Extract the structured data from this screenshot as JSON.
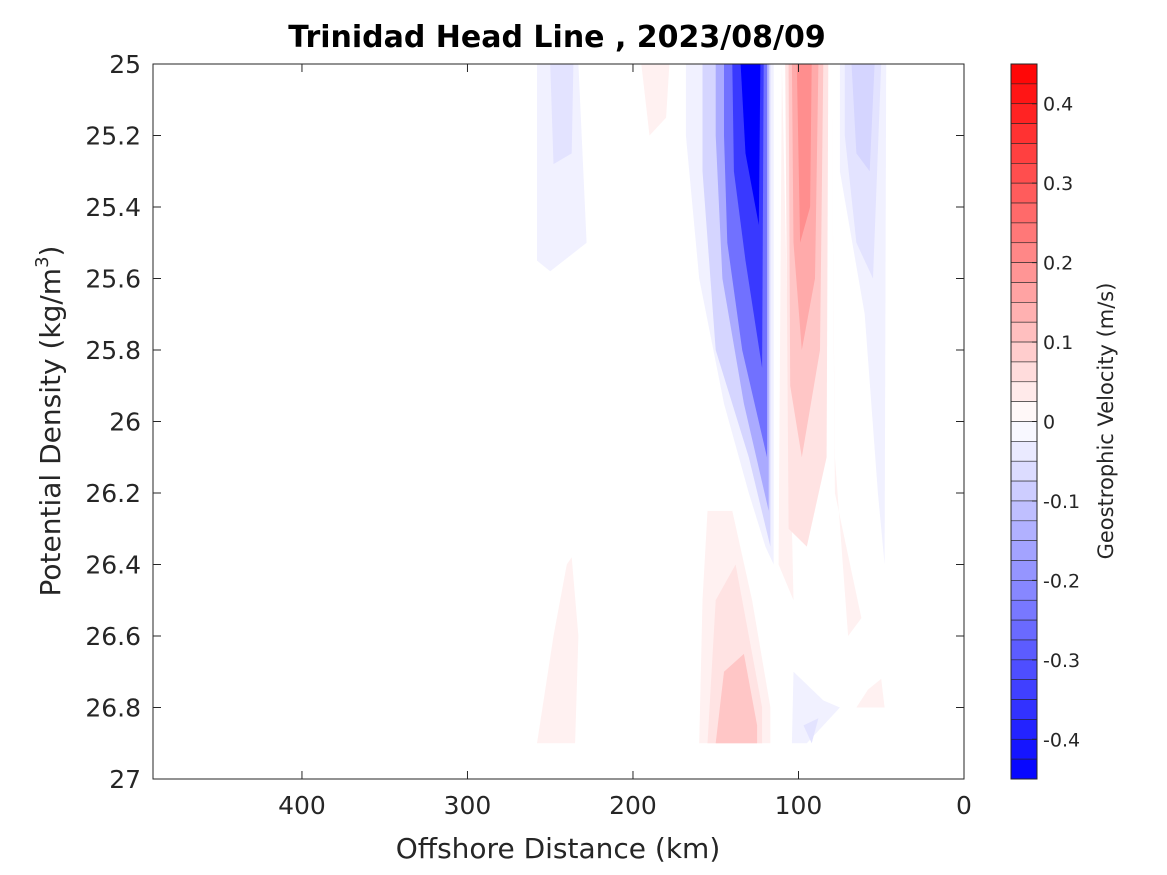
{
  "chart_data": {
    "type": "contour",
    "title": "Trinidad Head Line , 2023/08/09",
    "xlabel": "Offshore Distance (km)",
    "ylabel": "Potential Density (kg/m",
    "ylabel_sup": "3",
    "ylabel_close": ")",
    "xlim": [
      490,
      0
    ],
    "x_reversed": true,
    "ylim": [
      25,
      27
    ],
    "y_reversed": true,
    "xticks": [
      400,
      300,
      200,
      100,
      0
    ],
    "yticks": [
      25,
      25.2,
      25.4,
      25.6,
      25.8,
      26,
      26.2,
      26.4,
      26.6,
      26.8,
      27
    ],
    "colorbar": {
      "label": "Geostrophic Velocity (m/s)",
      "range": [
        -0.45,
        0.45
      ],
      "step": 0.025,
      "ticks": [
        0.4,
        0.3,
        0.2,
        0.1,
        0,
        -0.1,
        -0.2,
        -0.3,
        -0.4
      ],
      "colormap": "blue-white-red",
      "color_negative": "#0000ff",
      "color_zero": "#ffffff",
      "color_positive": "#ff0000"
    },
    "regions": [
      {
        "sign": "negative",
        "level": 0.025,
        "polygon": [
          [
            255,
            25.0
          ],
          [
            233,
            25.0
          ],
          [
            228,
            25.5
          ],
          [
            250,
            25.58
          ],
          [
            258,
            25.55
          ],
          [
            258,
            25.0
          ]
        ]
      },
      {
        "sign": "negative",
        "level": 0.05,
        "polygon": [
          [
            253,
            25.0
          ],
          [
            236,
            25.0
          ],
          [
            237,
            25.25
          ],
          [
            248,
            25.28
          ],
          [
            250,
            25.0
          ]
        ]
      },
      {
        "sign": "positive",
        "level": 0.025,
        "polygon": [
          [
            195,
            25.0
          ],
          [
            178,
            25.0
          ],
          [
            180,
            25.15
          ],
          [
            190,
            25.2
          ],
          [
            195,
            25.0
          ]
        ]
      },
      {
        "sign": "negative",
        "level": 0.025,
        "polygon": [
          [
            168,
            25.0
          ],
          [
            115,
            25.0
          ],
          [
            115,
            26.4
          ],
          [
            120,
            26.35
          ],
          [
            130,
            26.2
          ],
          [
            145,
            25.95
          ],
          [
            160,
            25.6
          ],
          [
            168,
            25.2
          ]
        ]
      },
      {
        "sign": "negative",
        "level": 0.075,
        "polygon": [
          [
            158,
            25.0
          ],
          [
            117,
            25.0
          ],
          [
            117,
            26.35
          ],
          [
            130,
            26.1
          ],
          [
            150,
            25.8
          ],
          [
            158,
            25.3
          ]
        ]
      },
      {
        "sign": "negative",
        "level": 0.15,
        "polygon": [
          [
            150,
            25.0
          ],
          [
            118,
            25.0
          ],
          [
            118,
            26.25
          ],
          [
            133,
            25.95
          ],
          [
            146,
            25.6
          ],
          [
            150,
            25.2
          ]
        ]
      },
      {
        "sign": "negative",
        "level": 0.25,
        "polygon": [
          [
            145,
            25.0
          ],
          [
            119,
            25.0
          ],
          [
            119,
            26.1
          ],
          [
            134,
            25.8
          ],
          [
            143,
            25.5
          ],
          [
            145,
            25.2
          ]
        ]
      },
      {
        "sign": "negative",
        "level": 0.35,
        "polygon": [
          [
            140,
            25.0
          ],
          [
            121,
            25.0
          ],
          [
            122,
            25.85
          ],
          [
            132,
            25.55
          ],
          [
            139,
            25.3
          ]
        ]
      },
      {
        "sign": "negative",
        "level": 0.45,
        "polygon": [
          [
            135,
            25.0
          ],
          [
            123,
            25.0
          ],
          [
            124,
            25.45
          ],
          [
            132,
            25.25
          ]
        ]
      },
      {
        "sign": "positive",
        "level": 0.025,
        "polygon": [
          [
            110,
            25.0
          ],
          [
            80,
            25.0
          ],
          [
            78,
            26.1
          ],
          [
            70,
            26.6
          ],
          [
            62,
            26.55
          ],
          [
            78,
            26.2
          ],
          [
            80,
            25.0
          ],
          [
            110,
            25.0
          ],
          [
            112,
            26.4
          ],
          [
            103,
            26.5
          ],
          [
            110,
            25.0
          ]
        ]
      },
      {
        "sign": "positive",
        "level": 0.05,
        "polygon": [
          [
            108,
            25.0
          ],
          [
            82,
            25.0
          ],
          [
            83,
            26.1
          ],
          [
            95,
            26.35
          ],
          [
            106,
            26.3
          ],
          [
            108,
            25.0
          ]
        ]
      },
      {
        "sign": "positive",
        "level": 0.1,
        "polygon": [
          [
            106,
            25.0
          ],
          [
            85,
            25.0
          ],
          [
            87,
            25.8
          ],
          [
            98,
            26.1
          ],
          [
            105,
            25.9
          ]
        ]
      },
      {
        "sign": "positive",
        "level": 0.15,
        "polygon": [
          [
            104,
            25.0
          ],
          [
            88,
            25.0
          ],
          [
            90,
            25.6
          ],
          [
            98,
            25.8
          ],
          [
            103,
            25.5
          ]
        ]
      },
      {
        "sign": "positive",
        "level": 0.2,
        "polygon": [
          [
            101,
            25.0
          ],
          [
            92,
            25.0
          ],
          [
            93,
            25.4
          ],
          [
            99,
            25.5
          ]
        ]
      },
      {
        "sign": "negative",
        "level": 0.025,
        "polygon": [
          [
            75,
            25.0
          ],
          [
            47,
            25.0
          ],
          [
            48,
            26.4
          ],
          [
            52,
            26.2
          ],
          [
            60,
            25.7
          ],
          [
            75,
            25.3
          ]
        ]
      },
      {
        "sign": "negative",
        "level": 0.05,
        "polygon": [
          [
            72,
            25.0
          ],
          [
            50,
            25.0
          ],
          [
            55,
            25.6
          ],
          [
            65,
            25.5
          ],
          [
            72,
            25.2
          ]
        ]
      },
      {
        "sign": "negative",
        "level": 0.075,
        "polygon": [
          [
            68,
            25.0
          ],
          [
            54,
            25.0
          ],
          [
            57,
            25.3
          ],
          [
            65,
            25.25
          ]
        ]
      },
      {
        "sign": "positive",
        "level": 0.025,
        "polygon": [
          [
            155,
            26.25
          ],
          [
            140,
            26.25
          ],
          [
            128,
            26.5
          ],
          [
            117,
            26.8
          ],
          [
            117,
            26.9
          ],
          [
            160,
            26.9
          ],
          [
            158,
            26.5
          ]
        ]
      },
      {
        "sign": "positive",
        "level": 0.05,
        "polygon": [
          [
            150,
            26.5
          ],
          [
            138,
            26.4
          ],
          [
            122,
            26.8
          ],
          [
            122,
            26.9
          ],
          [
            155,
            26.9
          ]
        ]
      },
      {
        "sign": "positive",
        "level": 0.1,
        "polygon": [
          [
            145,
            26.7
          ],
          [
            133,
            26.65
          ],
          [
            125,
            26.85
          ],
          [
            125,
            26.9
          ],
          [
            150,
            26.9
          ]
        ]
      },
      {
        "sign": "positive",
        "level": 0.025,
        "polygon": [
          [
            240,
            26.4
          ],
          [
            248,
            26.6
          ],
          [
            258,
            26.9
          ],
          [
            235,
            26.9
          ],
          [
            233,
            26.6
          ],
          [
            237,
            26.38
          ]
        ]
      },
      {
        "sign": "negative",
        "level": 0.025,
        "polygon": [
          [
            103,
            26.7
          ],
          [
            85,
            26.78
          ],
          [
            75,
            26.8
          ],
          [
            95,
            26.9
          ],
          [
            104,
            26.9
          ]
        ]
      },
      {
        "sign": "negative",
        "level": 0.05,
        "polygon": [
          [
            97,
            26.85
          ],
          [
            88,
            26.83
          ],
          [
            92,
            26.9
          ]
        ]
      },
      {
        "sign": "positive",
        "level": 0.025,
        "polygon": [
          [
            65,
            26.8
          ],
          [
            58,
            26.75
          ],
          [
            50,
            26.72
          ],
          [
            48,
            26.8
          ]
        ]
      }
    ]
  }
}
